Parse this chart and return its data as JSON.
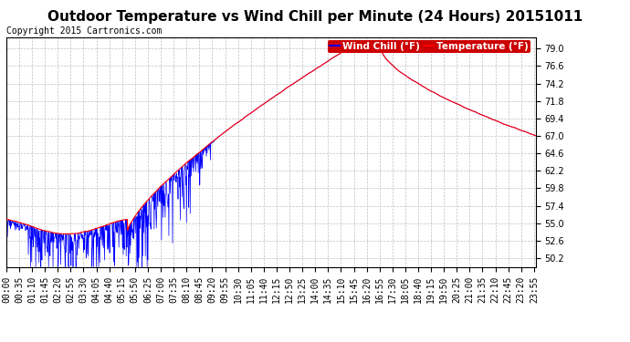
{
  "title": "Outdoor Temperature vs Wind Chill per Minute (24 Hours) 20151011",
  "copyright": "Copyright 2015 Cartronics.com",
  "legend_wind_chill": "Wind Chill (°F)",
  "legend_temperature": "Temperature (°F)",
  "ylabel_right_ticks": [
    50.2,
    52.6,
    55.0,
    57.4,
    59.8,
    62.2,
    64.6,
    67.0,
    69.4,
    71.8,
    74.2,
    76.6,
    79.0
  ],
  "ylim": [
    49.0,
    80.5
  ],
  "bg_color": "#ffffff",
  "plot_bg_color": "#ffffff",
  "grid_color": "#c0c0c0",
  "temp_color": "#ff0000",
  "wind_chill_color": "#0000ff",
  "title_fontsize": 11,
  "copyright_fontsize": 7,
  "tick_fontsize": 7,
  "legend_fontsize": 7.5,
  "total_minutes": 1440
}
